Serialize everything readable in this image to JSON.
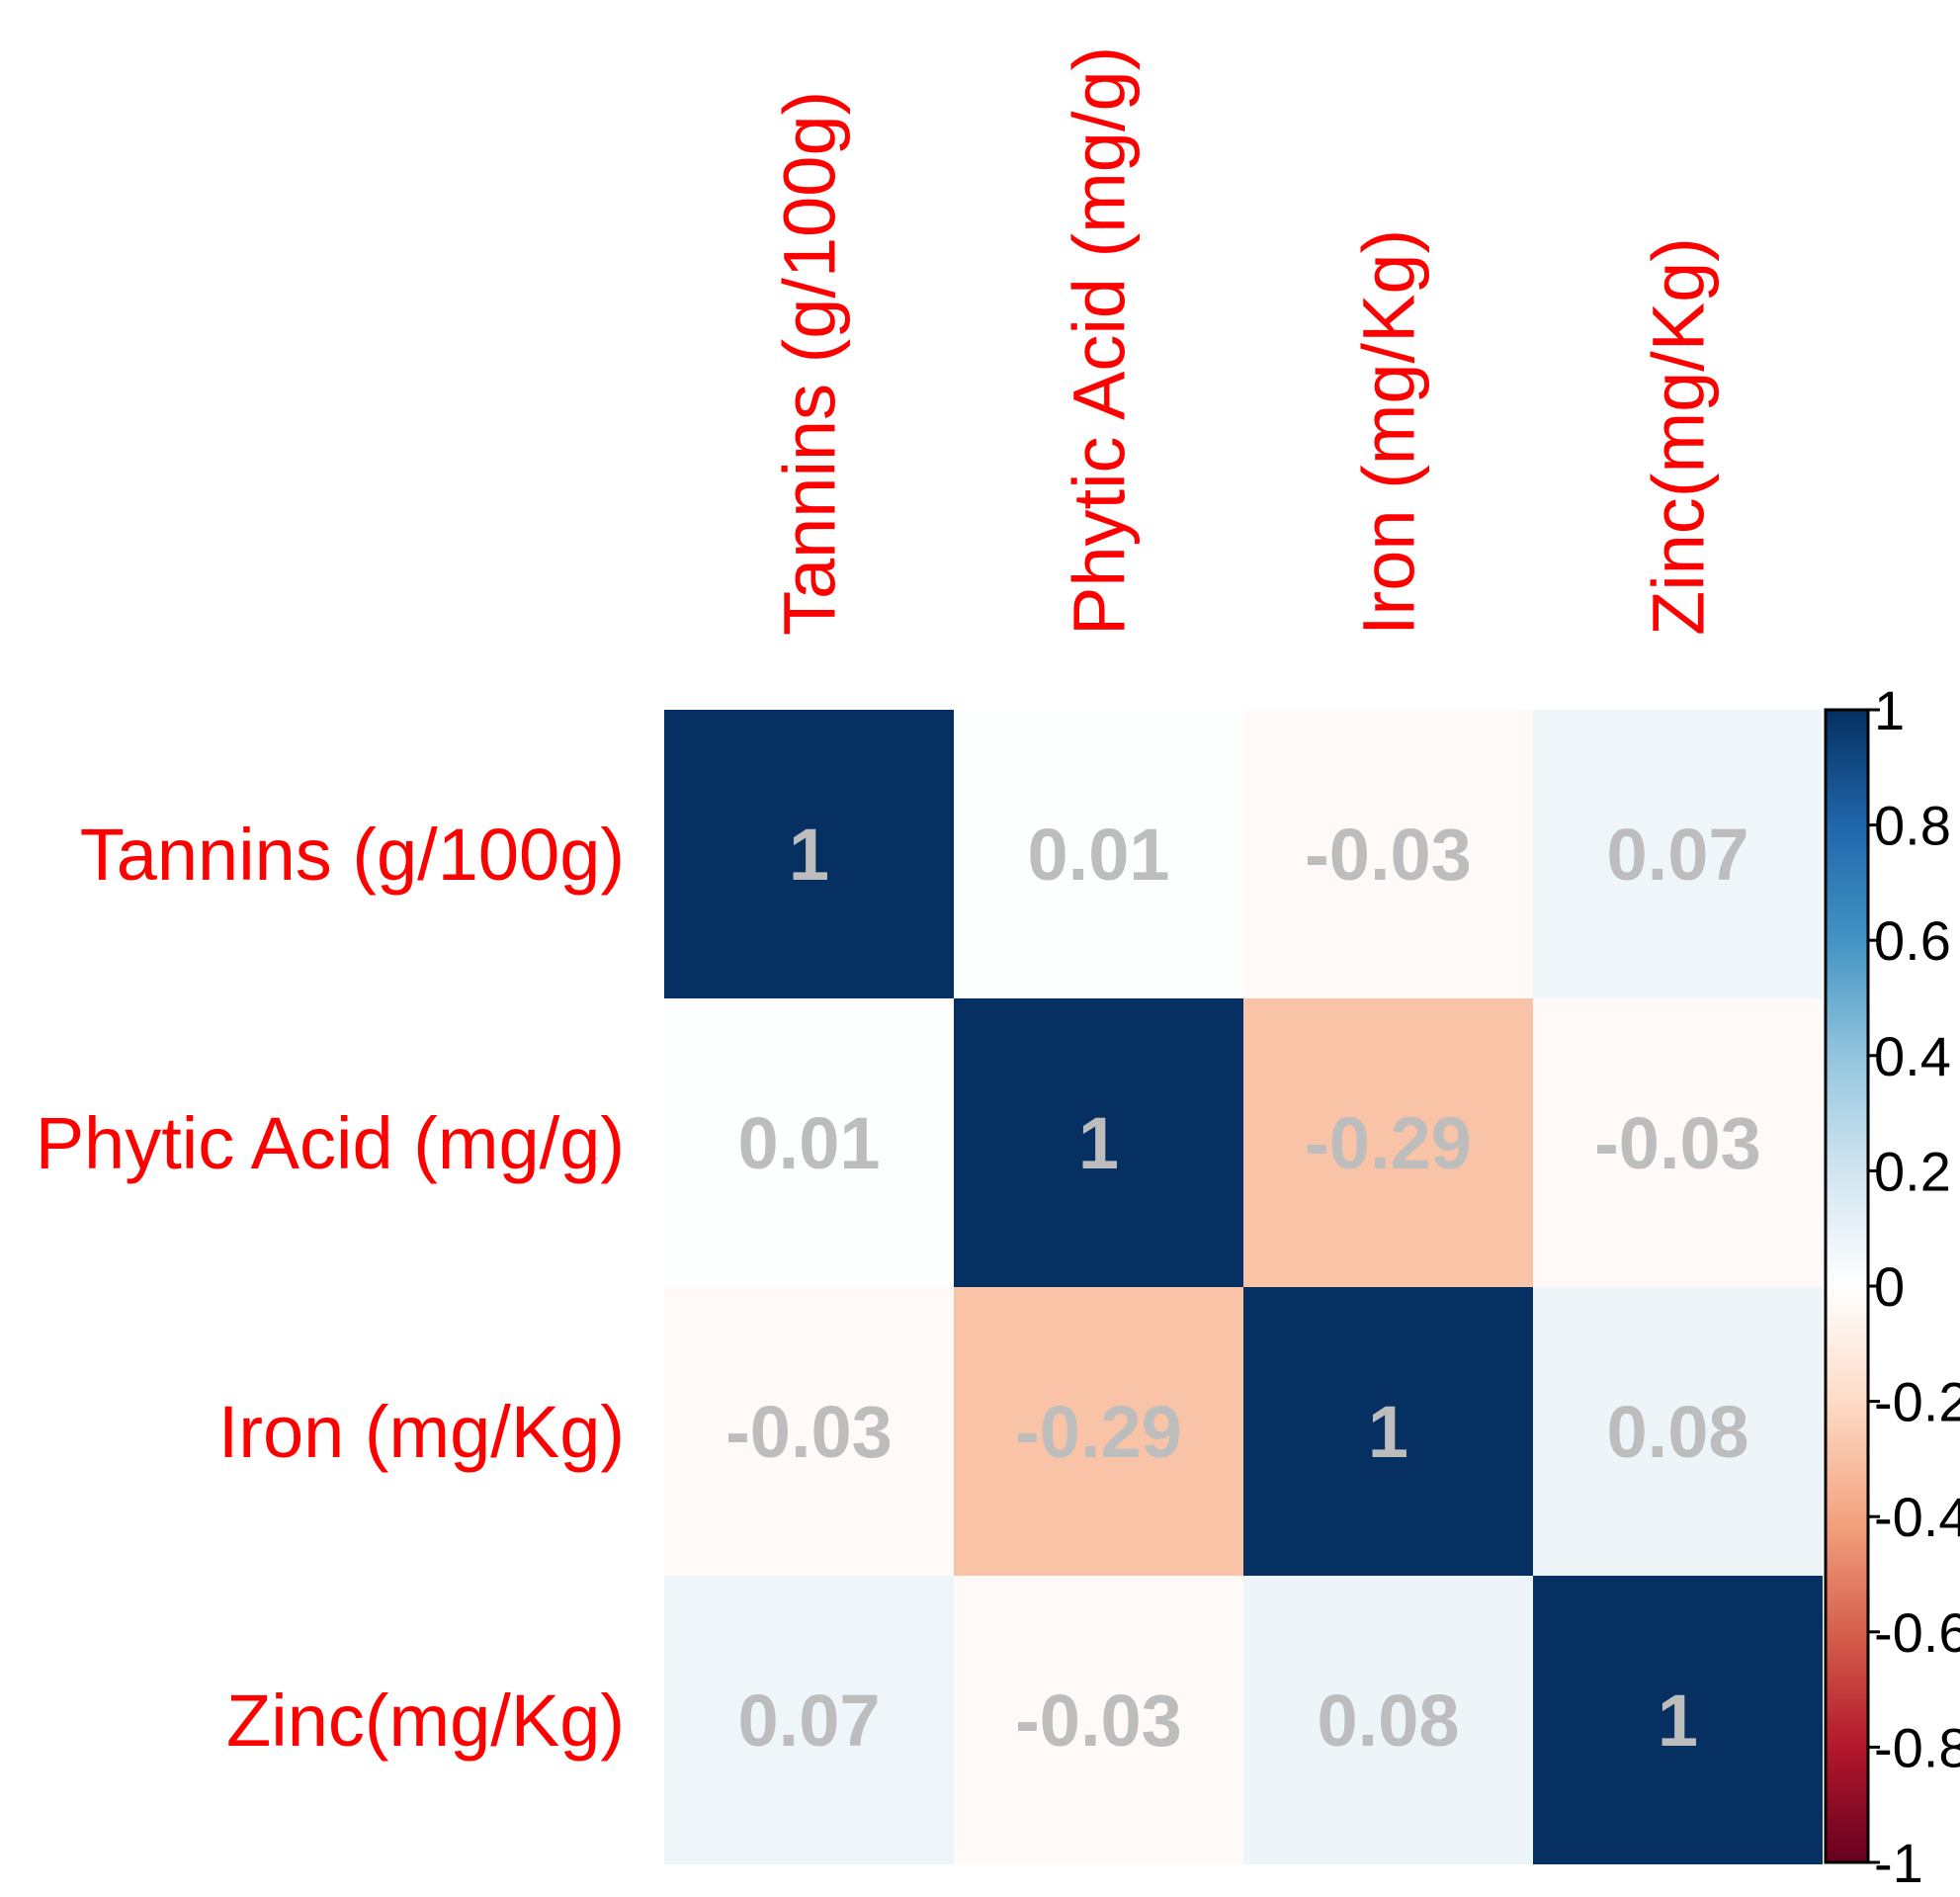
{
  "chart_data": {
    "type": "heatmap",
    "title": "",
    "variables": [
      "Tannins (g/100g)",
      "Phytic Acid (mg/g)",
      "Iron (mg/Kg)",
      "Zinc(mg/Kg)"
    ],
    "matrix": [
      [
        1,
        0.01,
        -0.03,
        0.07
      ],
      [
        0.01,
        1,
        -0.29,
        -0.03
      ],
      [
        -0.03,
        -0.29,
        1,
        0.08
      ],
      [
        0.07,
        -0.03,
        0.08,
        1
      ]
    ],
    "cell_labels": [
      [
        "1",
        "0.01",
        "-0.03",
        "0.07"
      ],
      [
        "0.01",
        "1",
        "-0.29",
        "-0.03"
      ],
      [
        "-0.03",
        "-0.29",
        "1",
        "0.08"
      ],
      [
        "0.07",
        "-0.03",
        "0.08",
        "1"
      ]
    ],
    "colorbar": {
      "range": [
        -1,
        1
      ],
      "ticks": [
        1,
        0.8,
        0.6,
        0.4,
        0.2,
        0,
        -0.2,
        -0.4,
        -0.6,
        -0.8,
        -1
      ],
      "tick_labels": [
        "1",
        "0.8",
        "0.6",
        "0.4",
        "0.2",
        "0",
        "-0.2",
        "-0.4",
        "-0.6",
        "-0.8",
        "-1"
      ],
      "placement": "right",
      "colors": [
        "#67001f",
        "#b2182b",
        "#d6604d",
        "#f4a582",
        "#fddbc7",
        "#ffffff",
        "#d1e5f0",
        "#92c5de",
        "#4393c3",
        "#2166ac",
        "#053061"
      ]
    },
    "label_color": "#ff0000",
    "value_color": "#bdbdbd",
    "grid": false
  }
}
